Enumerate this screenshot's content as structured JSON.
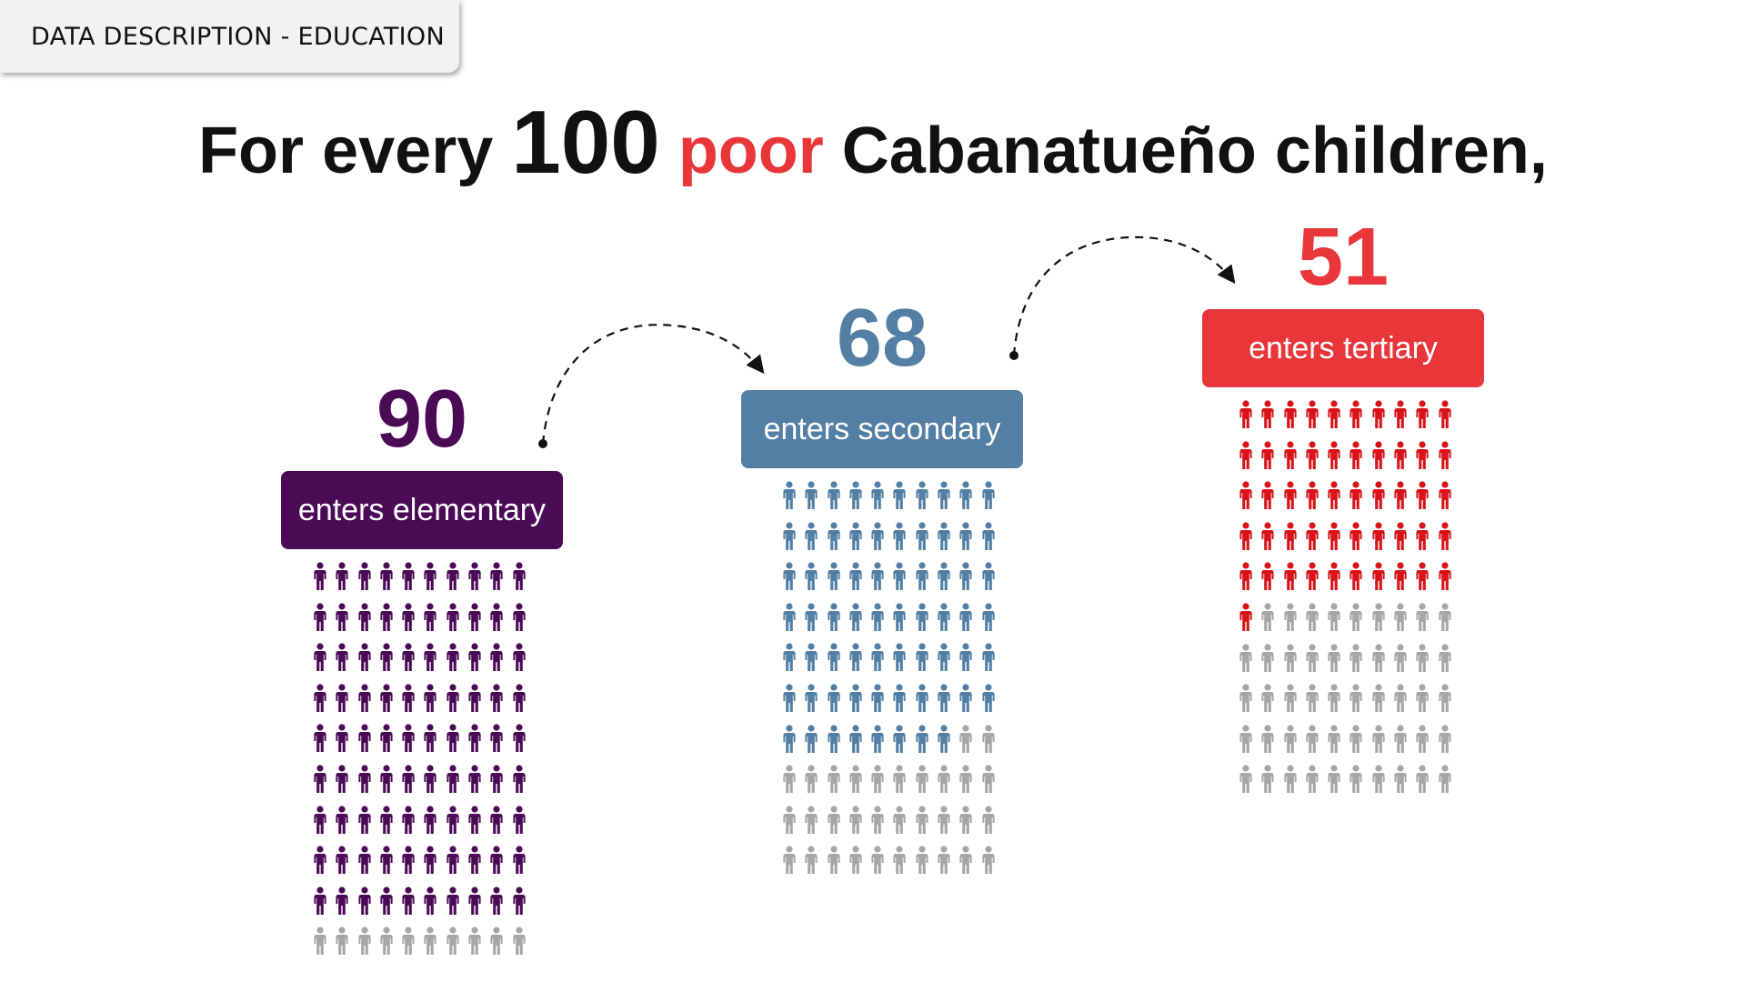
{
  "header_tag": "DATA DESCRIPTION - EDUCATION",
  "headline": {
    "part1": "For every",
    "number": "100",
    "accent": "poor",
    "part2": "Cabanatueño children,"
  },
  "colors": {
    "inactive_icon": "#a6a6a6",
    "elementary": "#4b0a56",
    "secondary": "#527fa3",
    "tertiary": "#e8363a",
    "tertiary_icon": "#d8141a"
  },
  "icon": "person-icon",
  "stages": [
    {
      "count": "90",
      "label": "enters elementary",
      "value": 90,
      "total": 100
    },
    {
      "count": "68",
      "label": "enters secondary",
      "value": 68,
      "total": 100
    },
    {
      "count": "51",
      "label": "enters tertiary",
      "value": 51,
      "total": 100
    }
  ]
}
